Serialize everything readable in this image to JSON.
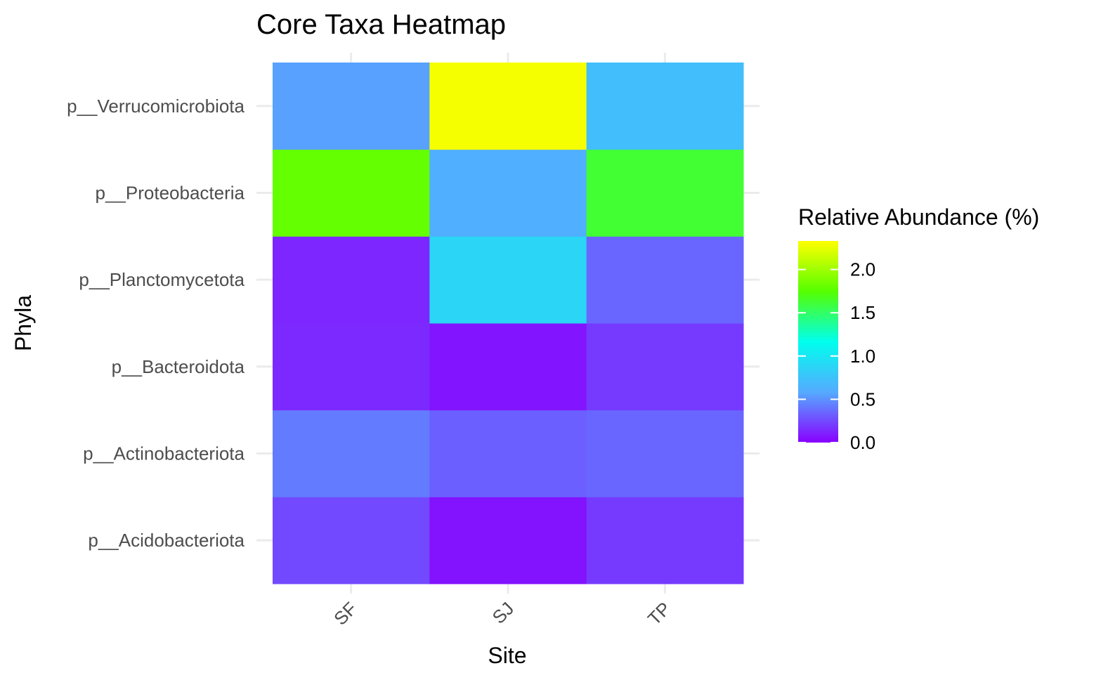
{
  "chart_data": {
    "type": "heatmap",
    "title": "Core Taxa Heatmap",
    "xlabel": "Site",
    "ylabel": "Phyla",
    "x_categories": [
      "SF",
      "SJ",
      "TP"
    ],
    "y_categories": [
      "p__Acidobacteriota",
      "p__Actinobacteriota",
      "p__Bacteroidota",
      "p__Planctomycetota",
      "p__Proteobacteria",
      "p__Verrucomicrobiota"
    ],
    "values": [
      [
        0.25,
        0.06,
        0.2
      ],
      [
        0.42,
        0.33,
        0.35
      ],
      [
        0.14,
        0.07,
        0.2
      ],
      [
        0.13,
        0.88,
        0.35
      ],
      [
        1.8,
        0.62,
        1.62
      ],
      [
        0.55,
        2.3,
        0.72
      ]
    ],
    "legend": {
      "title": "Relative Abundance (%)",
      "ticks": [
        0.0,
        0.5,
        1.0,
        1.5,
        2.0
      ],
      "tick_labels": [
        "0.0",
        "0.5",
        "1.0",
        "1.5",
        "2.0"
      ],
      "range": [
        0,
        2.33
      ],
      "position": "right"
    },
    "colorscale": [
      "#8800ff",
      "#55aaff",
      "#00ffee",
      "#55ff00",
      "#ffff00"
    ],
    "grid": true
  }
}
